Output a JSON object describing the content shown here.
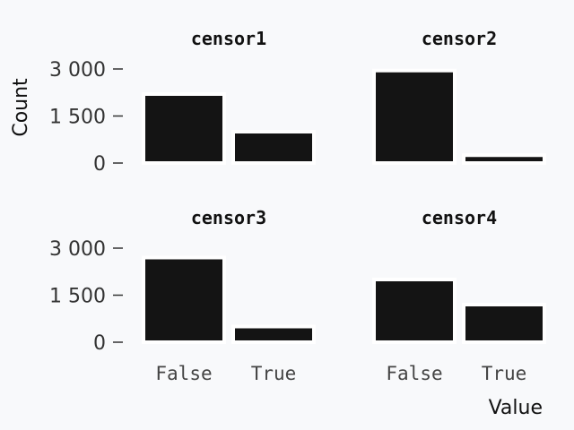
{
  "chart_data": {
    "type": "bar",
    "xlabel": "Value",
    "ylabel": "Count",
    "ylim": [
      0,
      3000
    ],
    "yticks": [
      0,
      1500,
      3000
    ],
    "ytick_labels": [
      "0",
      "1 500",
      "3 000"
    ],
    "categories": [
      "False",
      "True"
    ],
    "bar_color": "#141414",
    "grid": false,
    "panels": [
      {
        "title": "censor1",
        "values": [
          2200,
          1000
        ]
      },
      {
        "title": "censor2",
        "values": [
          2950,
          250
        ]
      },
      {
        "title": "censor3",
        "values": [
          2700,
          500
        ]
      },
      {
        "title": "censor4",
        "values": [
          2000,
          1200
        ]
      }
    ]
  }
}
